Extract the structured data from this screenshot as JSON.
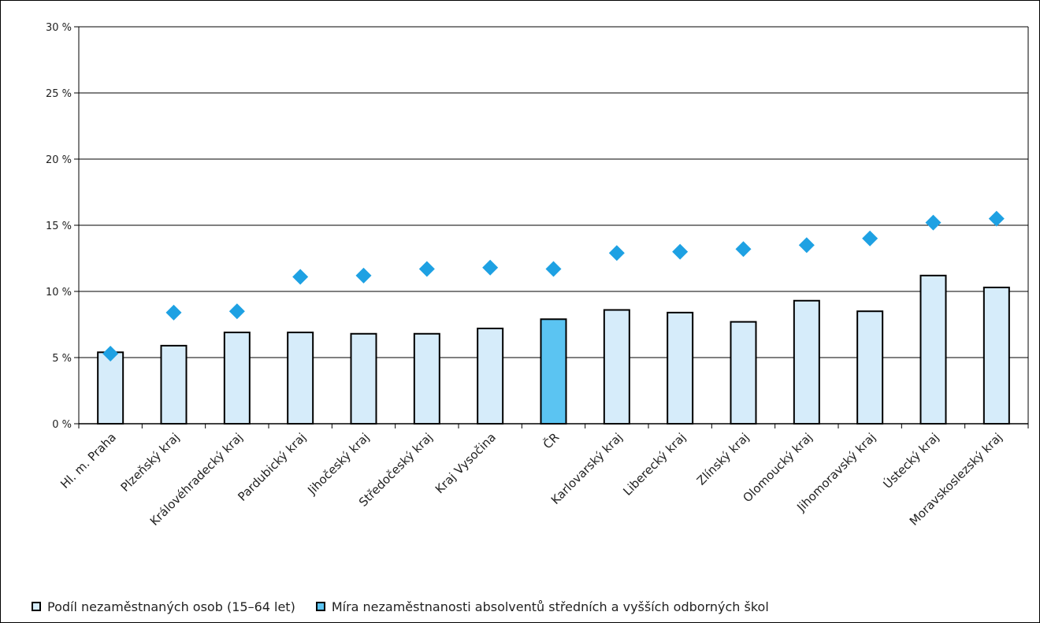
{
  "chart_data": {
    "type": "bar",
    "categories": [
      "Hl. m. Praha",
      "Plzeňský kraj",
      "Královéhradecký kraj",
      "Pardubický kraj",
      "Jihočeský kraj",
      "Středočeský kraj",
      "Kraj Vysočina",
      "ČR",
      "Karlovarský kraj",
      "Liberecký kraj",
      "Zlínský kraj",
      "Olomoucký kraj",
      "Jihomoravský kraj",
      "Ústecký kraj",
      "Moravskoslezský kraj"
    ],
    "series": [
      {
        "name": "Podíl nezaměstnaných osob (15–64 let)",
        "type": "bar",
        "color": "#d6ecfa",
        "highlight_color": "#5bc4f2",
        "highlight_category": "ČR",
        "values": [
          5.4,
          5.9,
          6.9,
          6.9,
          6.8,
          6.8,
          7.2,
          7.9,
          8.6,
          8.4,
          7.7,
          9.3,
          8.5,
          11.2,
          10.3
        ]
      },
      {
        "name": "Míra nezaměstnanosti absolventů středních a vyšších odborných škol",
        "type": "marker",
        "marker": "diamond",
        "color": "#1ea1e3",
        "values": [
          5.3,
          8.4,
          8.5,
          11.1,
          11.2,
          11.7,
          11.8,
          11.7,
          12.9,
          13.0,
          13.2,
          13.5,
          14.0,
          15.2,
          15.5
        ]
      }
    ],
    "ylim": [
      0,
      30
    ],
    "yticks": [
      0,
      5,
      10,
      15,
      20,
      25,
      30
    ],
    "ytick_labels": [
      "0 %",
      "5 %",
      "10 %",
      "15 %",
      "20 %",
      "25 %",
      "30 %"
    ],
    "grid": true,
    "legend_position": "bottom"
  },
  "legend": {
    "bar_label": "Podíl nezaměstnaných osob (15–64 let)",
    "marker_label": "Míra nezaměstnanosti absolventů středních a vyšších odborných škol"
  }
}
